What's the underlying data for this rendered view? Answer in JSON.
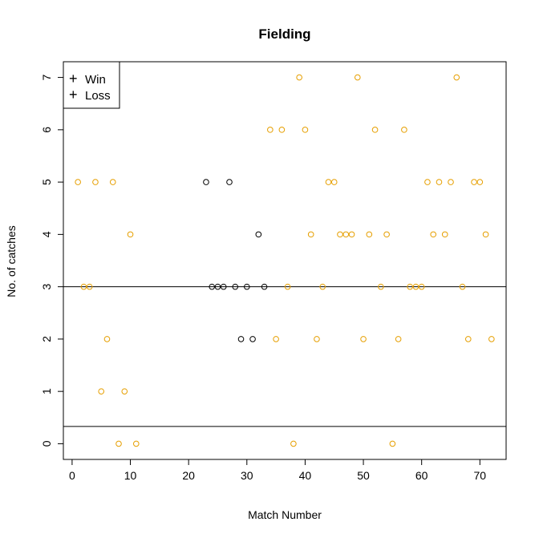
{
  "chart_data": {
    "type": "scatter",
    "title": "Fielding",
    "xlabel": "Match Number",
    "ylabel": "No. of catches",
    "xlim": [
      -1.5,
      74.5
    ],
    "ylim": [
      -0.3,
      7.3
    ],
    "xticks": [
      0,
      10,
      20,
      30,
      40,
      50,
      60,
      70
    ],
    "yticks": [
      0,
      1,
      2,
      3,
      4,
      5,
      6,
      7
    ],
    "hlines": [
      3,
      0.33
    ],
    "legend": {
      "position": "top-left",
      "entries": [
        "Win",
        "Loss"
      ]
    },
    "series": [
      {
        "name": "Win",
        "color": "#E69F00",
        "points": [
          [
            1,
            5
          ],
          [
            2,
            3
          ],
          [
            3,
            3
          ],
          [
            4,
            5
          ],
          [
            5,
            1
          ],
          [
            6,
            2
          ],
          [
            7,
            5
          ],
          [
            8,
            0
          ],
          [
            9,
            1
          ],
          [
            10,
            4
          ],
          [
            11,
            0
          ],
          [
            34,
            6
          ],
          [
            35,
            2
          ],
          [
            36,
            6
          ],
          [
            37,
            3
          ],
          [
            38,
            0
          ],
          [
            39,
            7
          ],
          [
            40,
            6
          ],
          [
            41,
            4
          ],
          [
            42,
            2
          ],
          [
            43,
            3
          ],
          [
            44,
            5
          ],
          [
            45,
            5
          ],
          [
            46,
            4
          ],
          [
            47,
            4
          ],
          [
            48,
            4
          ],
          [
            49,
            7
          ],
          [
            50,
            2
          ],
          [
            51,
            4
          ],
          [
            52,
            6
          ],
          [
            53,
            3
          ],
          [
            54,
            4
          ],
          [
            55,
            0
          ],
          [
            56,
            2
          ],
          [
            57,
            6
          ],
          [
            58,
            3
          ],
          [
            59,
            3
          ],
          [
            60,
            3
          ],
          [
            61,
            5
          ],
          [
            62,
            4
          ],
          [
            63,
            5
          ],
          [
            64,
            4
          ],
          [
            65,
            5
          ],
          [
            66,
            7
          ],
          [
            67,
            3
          ],
          [
            68,
            2
          ],
          [
            69,
            5
          ],
          [
            70,
            5
          ],
          [
            71,
            4
          ],
          [
            72,
            2
          ]
        ]
      },
      {
        "name": "Loss",
        "color": "#000000",
        "points": [
          [
            23,
            5
          ],
          [
            24,
            3
          ],
          [
            25,
            3
          ],
          [
            26,
            3
          ],
          [
            27,
            5
          ],
          [
            28,
            3
          ],
          [
            29,
            2
          ],
          [
            30,
            3
          ],
          [
            31,
            2
          ],
          [
            32,
            4
          ],
          [
            33,
            3
          ]
        ]
      }
    ]
  }
}
